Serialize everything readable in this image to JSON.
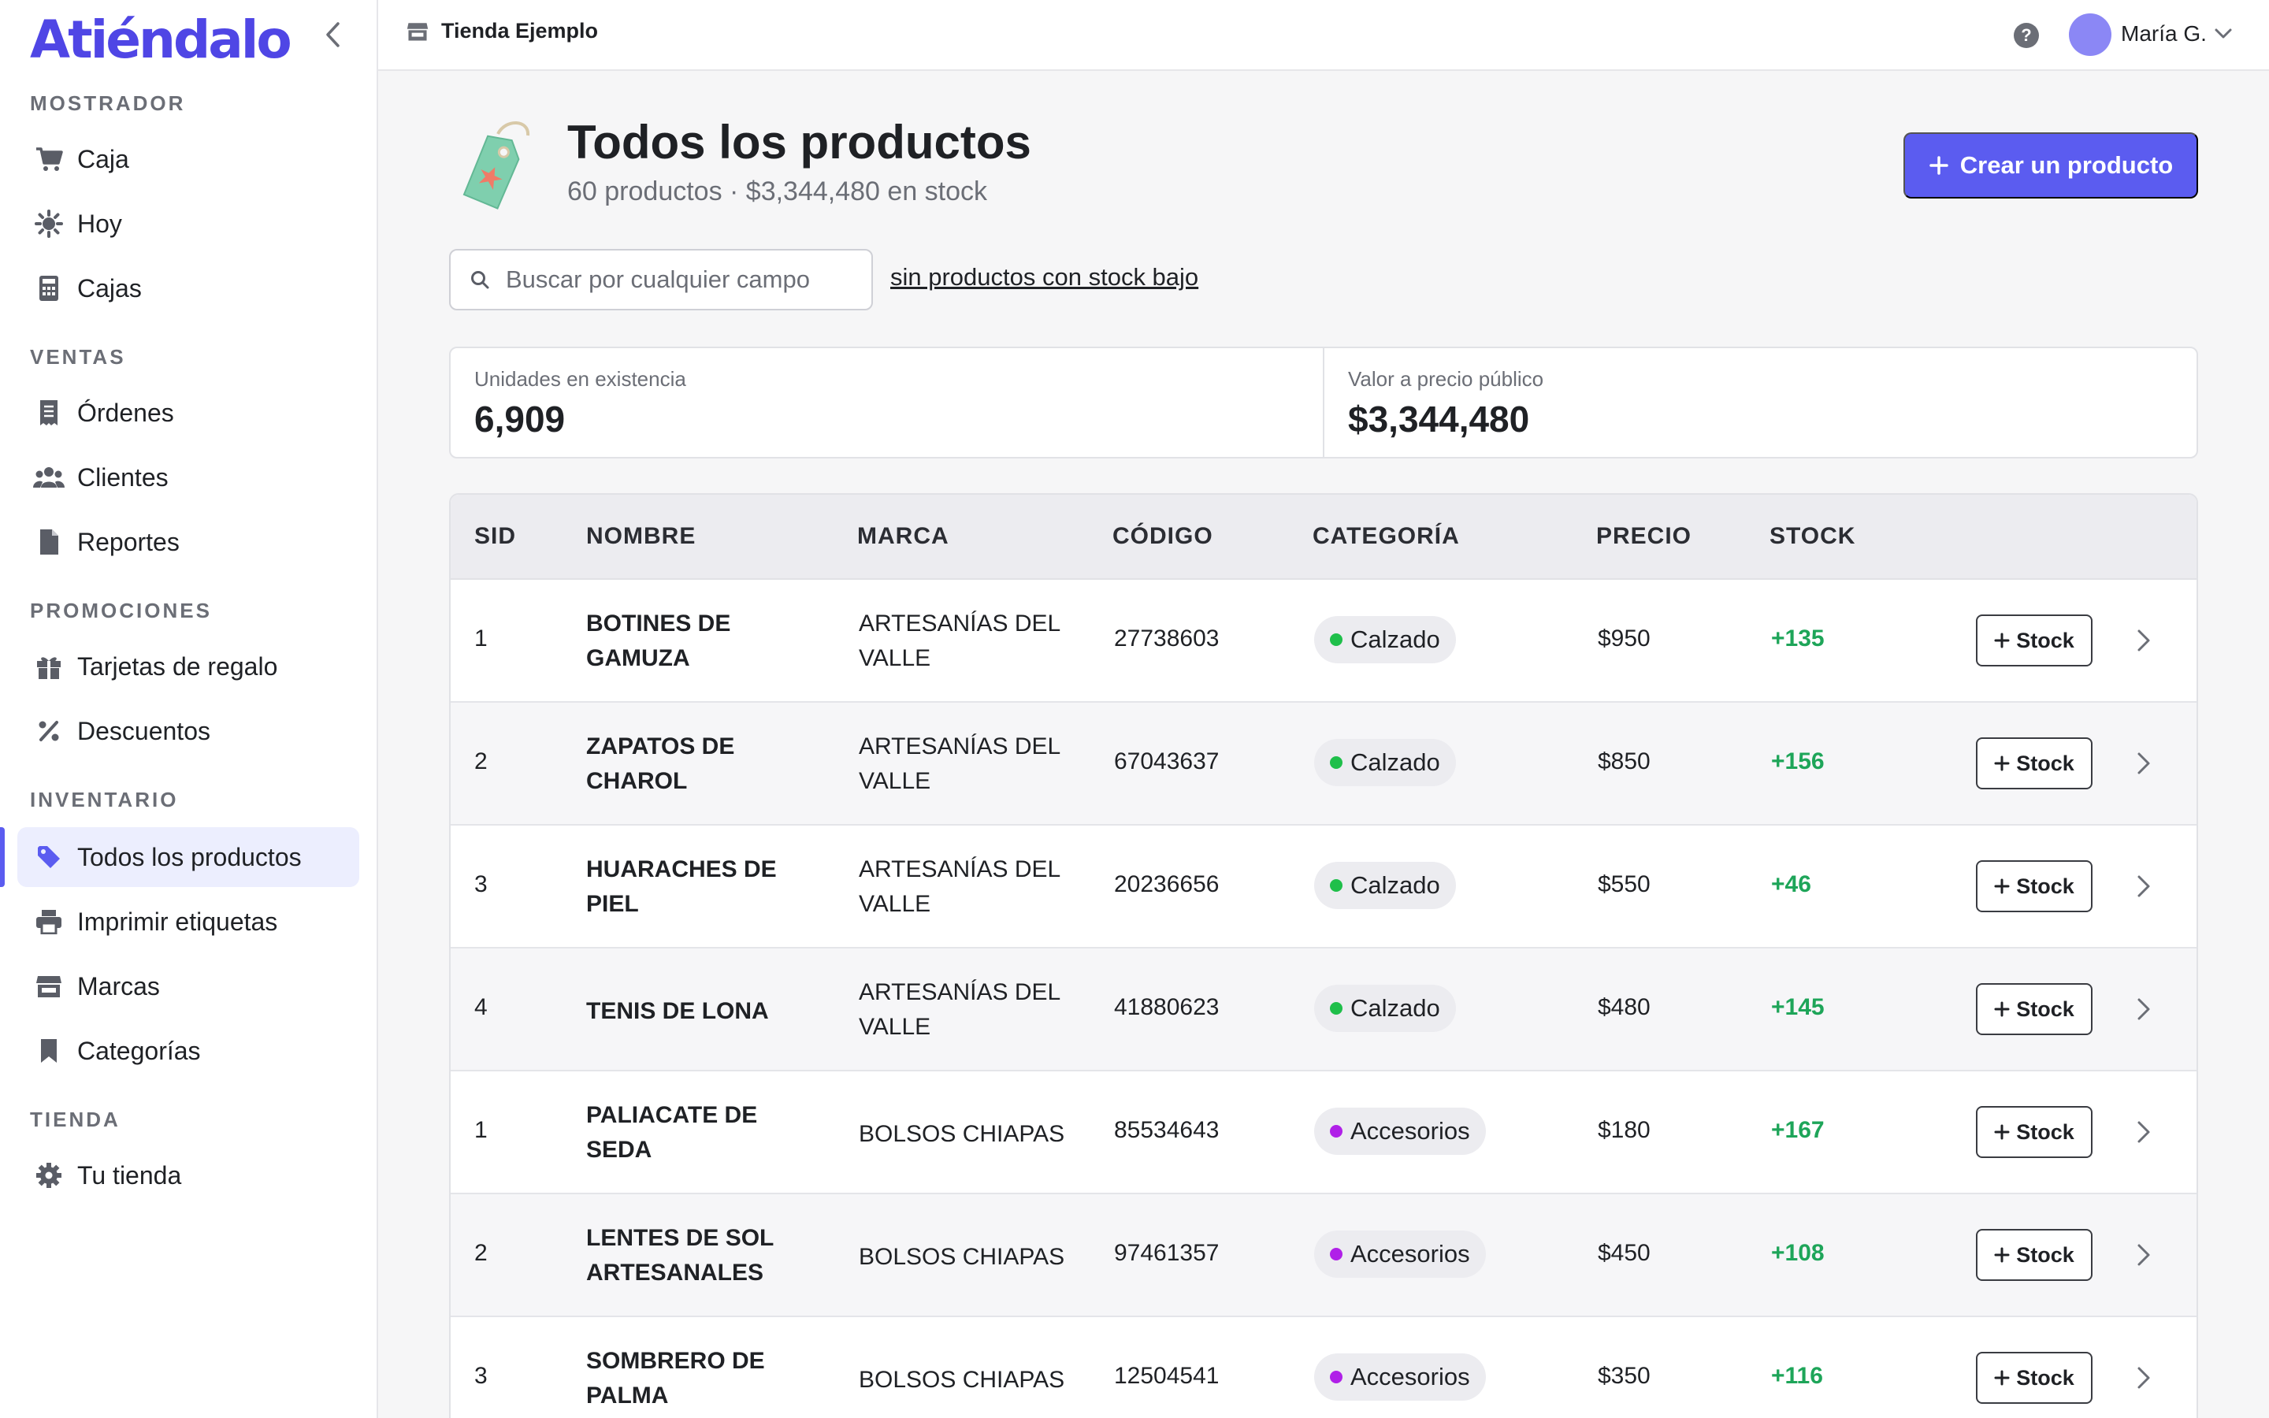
{
  "app": {
    "logo": "Atiéndalo"
  },
  "sidebar": {
    "sections": [
      {
        "title": "MOSTRADOR",
        "items": [
          {
            "label": "Caja",
            "icon": "cart-icon"
          },
          {
            "label": "Hoy",
            "icon": "sun-icon"
          },
          {
            "label": "Cajas",
            "icon": "calculator-icon"
          }
        ]
      },
      {
        "title": "VENTAS",
        "items": [
          {
            "label": "Órdenes",
            "icon": "receipt-icon"
          },
          {
            "label": "Clientes",
            "icon": "users-icon"
          },
          {
            "label": "Reportes",
            "icon": "document-icon"
          }
        ]
      },
      {
        "title": "PROMOCIONES",
        "items": [
          {
            "label": "Tarjetas de regalo",
            "icon": "gift-icon"
          },
          {
            "label": "Descuentos",
            "icon": "percent-icon"
          }
        ]
      },
      {
        "title": "INVENTARIO",
        "items": [
          {
            "label": "Todos los productos",
            "icon": "tag-icon",
            "active": true
          },
          {
            "label": "Imprimir etiquetas",
            "icon": "printer-icon"
          },
          {
            "label": "Marcas",
            "icon": "store-icon"
          },
          {
            "label": "Categorías",
            "icon": "bookmark-icon"
          }
        ]
      },
      {
        "title": "TIENDA",
        "items": [
          {
            "label": "Tu tienda",
            "icon": "gear-icon"
          }
        ]
      }
    ]
  },
  "topbar": {
    "store_name": "Tienda Ejemplo",
    "user_name": "María G."
  },
  "page": {
    "title": "Todos los productos",
    "subtitle": "60 productos · $3,344,480 en stock",
    "create_label": "Crear un producto",
    "search_placeholder": "Buscar por cualquier campo",
    "low_stock_link": "sin productos con stock bajo"
  },
  "stats": [
    {
      "label": "Unidades en existencia",
      "value": "6,909"
    },
    {
      "label": "Valor a precio público",
      "value": "$3,344,480"
    }
  ],
  "table": {
    "columns": [
      "SID",
      "NOMBRE",
      "MARCA",
      "CÓDIGO",
      "CATEGORÍA",
      "PRECIO",
      "STOCK"
    ],
    "stock_button_label": "Stock",
    "rows": [
      {
        "sid": "1",
        "name": "BOTINES DE GAMUZA",
        "brand": "ARTESANÍAS DEL VALLE",
        "code": "27738603",
        "category": "Calzado",
        "price": "$950",
        "stock": "+135"
      },
      {
        "sid": "2",
        "name": "ZAPATOS DE CHAROL",
        "brand": "ARTESANÍAS DEL VALLE",
        "code": "67043637",
        "category": "Calzado",
        "price": "$850",
        "stock": "+156"
      },
      {
        "sid": "3",
        "name": "HUARACHES DE PIEL",
        "brand": "ARTESANÍAS DEL VALLE",
        "code": "20236656",
        "category": "Calzado",
        "price": "$550",
        "stock": "+46"
      },
      {
        "sid": "4",
        "name": "TENIS DE LONA",
        "brand": "ARTESANÍAS DEL VALLE",
        "code": "41880623",
        "category": "Calzado",
        "price": "$480",
        "stock": "+145"
      },
      {
        "sid": "1",
        "name": "PALIACATE DE SEDA",
        "brand": "BOLSOS CHIAPAS",
        "code": "85534643",
        "category": "Accesorios",
        "price": "$180",
        "stock": "+167"
      },
      {
        "sid": "2",
        "name": "LENTES DE SOL ARTESANALES",
        "brand": "BOLSOS CHIAPAS",
        "code": "97461357",
        "category": "Accesorios",
        "price": "$450",
        "stock": "+108"
      },
      {
        "sid": "3",
        "name": "SOMBRERO DE PALMA",
        "brand": "BOLSOS CHIAPAS",
        "code": "12504541",
        "category": "Accesorios",
        "price": "$350",
        "stock": "+116"
      }
    ]
  },
  "colors": {
    "accent": "#5b5cf0",
    "logo": "#4f46e5",
    "stock_positive": "#1ea559",
    "category_calzado": "#1fbf4a",
    "category_accesorios": "#b020e8"
  }
}
